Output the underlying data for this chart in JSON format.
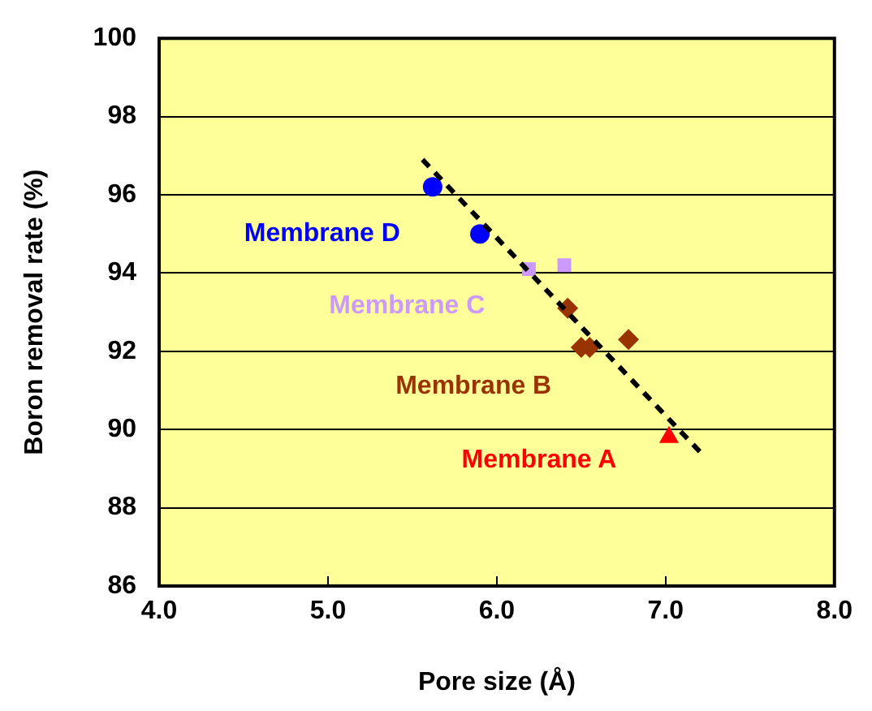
{
  "chart_data": {
    "type": "scatter",
    "xlabel": "Pore size (Å)",
    "ylabel": "Boron removal rate (%)",
    "xlim": [
      4.0,
      8.0
    ],
    "xticks": [
      {
        "value": 4,
        "label": "4.0"
      },
      {
        "value": 5,
        "label": "5.0"
      },
      {
        "value": 6,
        "label": "6.0"
      },
      {
        "value": 7,
        "label": "7.0"
      },
      {
        "value": 8,
        "label": "8.0"
      }
    ],
    "ylim": [
      86,
      100
    ],
    "yticks": [
      86,
      88,
      90,
      92,
      94,
      96,
      98,
      100
    ],
    "grid": "y",
    "legend": false,
    "series": [
      {
        "name": "Membrane A",
        "color": "#ff0000",
        "marker": "triangle",
        "x": [
          7.02
        ],
        "values": [
          89.8
        ]
      },
      {
        "name": "Membrane B",
        "color": "#993300",
        "marker": "diamond",
        "x": [
          6.42,
          6.5,
          6.55,
          6.78
        ],
        "values": [
          93.1,
          92.1,
          92.1,
          92.3
        ]
      },
      {
        "name": "Membrane C",
        "color": "#cc99ff",
        "marker": "square",
        "x": [
          6.19,
          6.4
        ],
        "values": [
          94.1,
          94.2
        ]
      },
      {
        "name": "Membrane D",
        "color": "#0000ff",
        "marker": "circle",
        "x": [
          5.62,
          5.9
        ],
        "values": [
          96.2,
          95.0
        ]
      },
      {
        "type": "line",
        "color": "#000000",
        "marker": "none",
        "line_style": "dashed",
        "x": [
          5.56,
          7.21
        ],
        "values": [
          96.9,
          89.4
        ]
      }
    ]
  }
}
